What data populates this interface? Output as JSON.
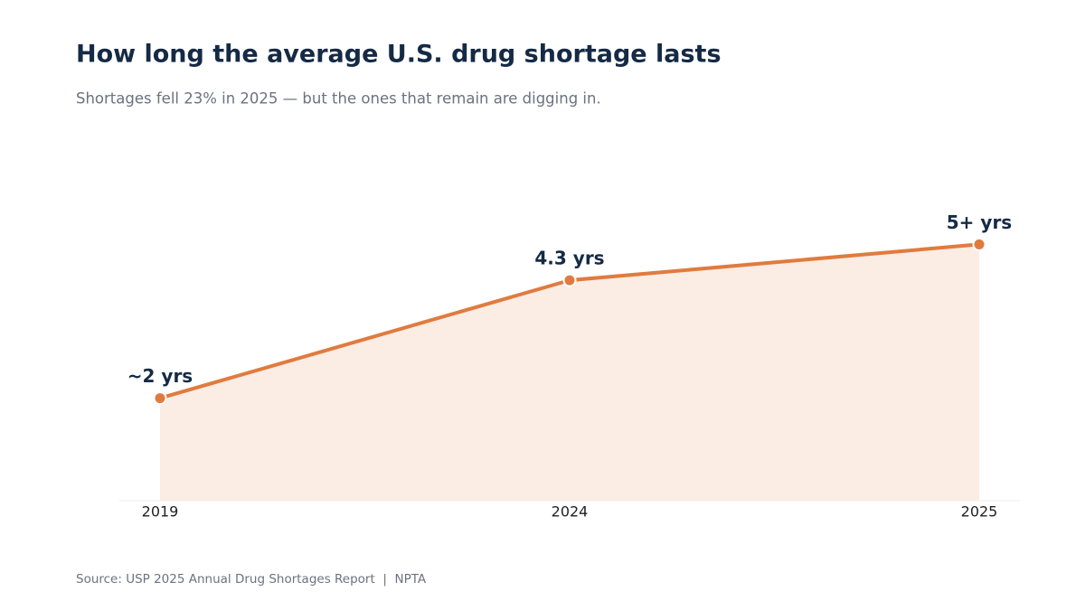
{
  "chart_data": {
    "type": "area",
    "title": "How long the average U.S. drug shortage lasts",
    "subtitle": "Shortages fell 23% in 2025 — but the ones that remain are digging in.",
    "source": "Source: USP 2025 Annual Drug Shortages Report  |  NPTA",
    "categories": [
      "2019",
      "2024",
      "2025"
    ],
    "values": [
      2,
      4.3,
      5
    ],
    "value_labels": [
      "~2 yrs",
      "4.3 yrs",
      "5+ yrs"
    ],
    "color": "#e07b3f",
    "fill_color": "#fbece4",
    "ylim": [
      0,
      7
    ]
  }
}
